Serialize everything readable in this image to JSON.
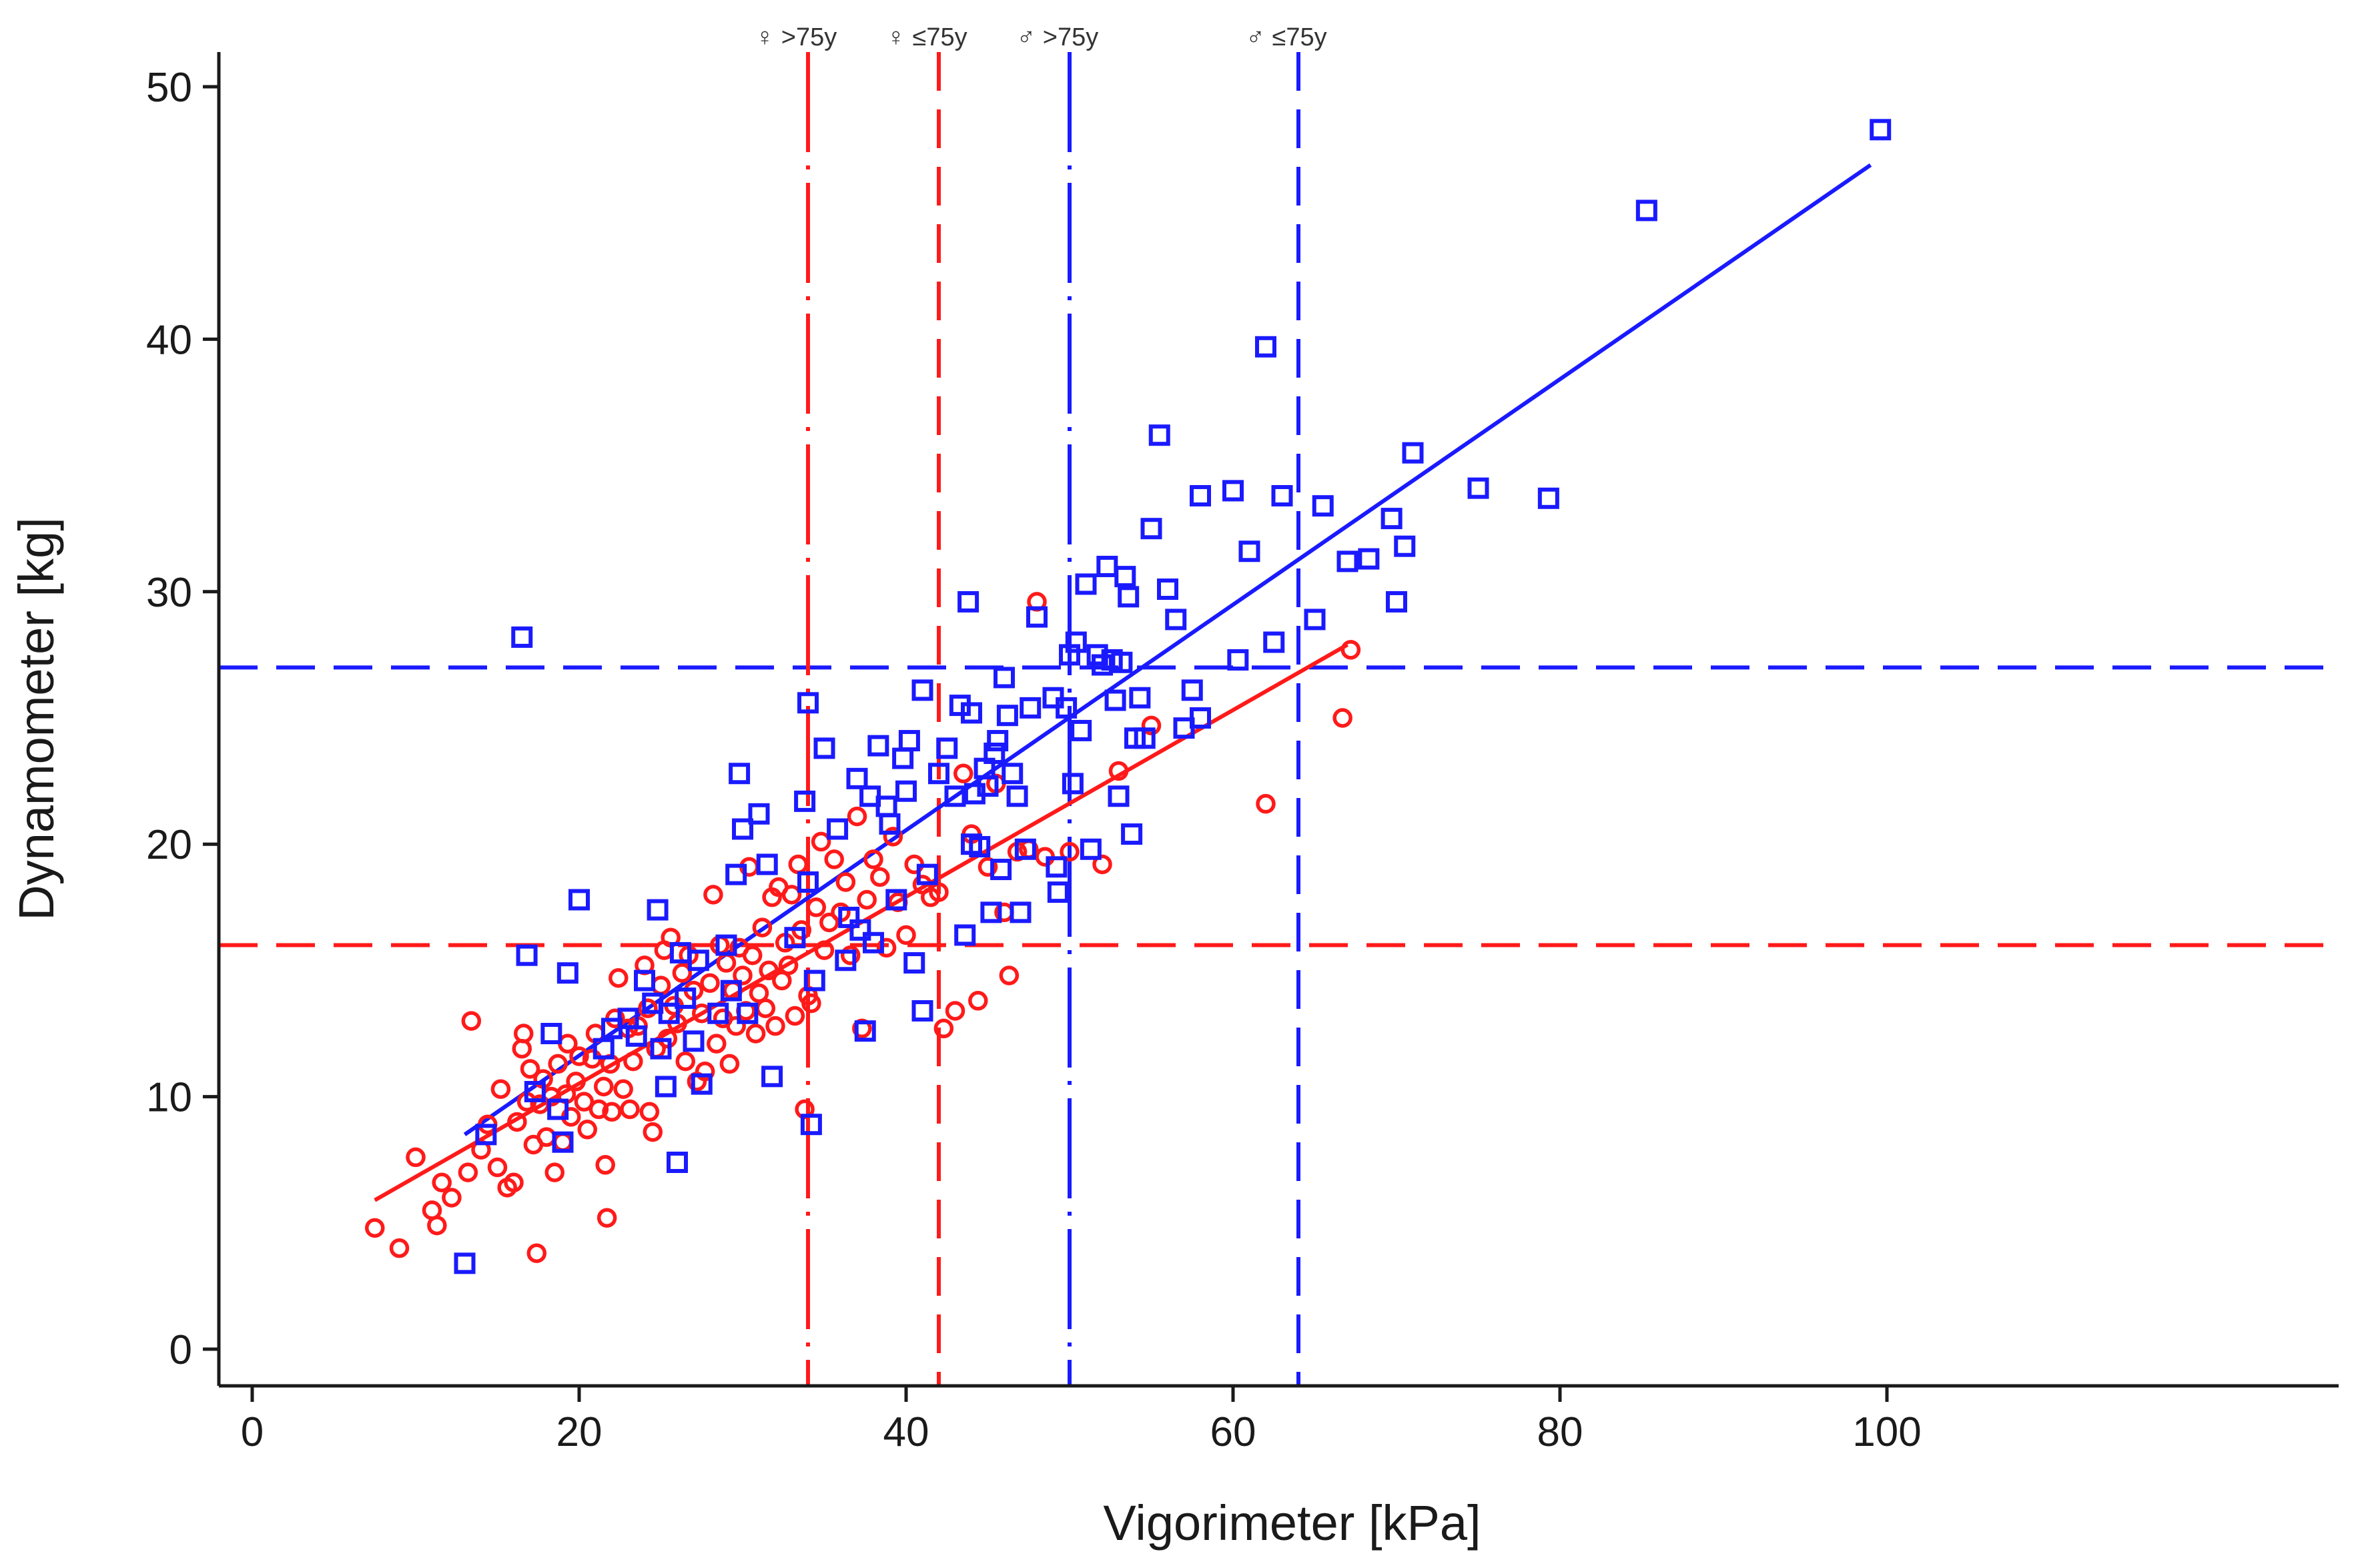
{
  "chart_data": {
    "type": "scatter",
    "xlabel": "Vigorimeter [kPa]",
    "ylabel": "Dynamometer [kg]",
    "xlim": [
      -2,
      102
    ],
    "ylim": [
      -1.5,
      51.5
    ],
    "xticks": [
      0,
      20,
      40,
      60,
      80,
      100
    ],
    "yticks": [
      0,
      10,
      20,
      30,
      40,
      50
    ],
    "grid": false,
    "legend": "none",
    "colors": {
      "female": "#ff1a1a",
      "male": "#1a1aff"
    },
    "series": [
      {
        "marker": "circle",
        "color": "#ff1a1a",
        "points": [
          [
            7.5,
            4.8
          ],
          [
            9,
            4
          ],
          [
            10,
            7.6
          ],
          [
            11,
            5.5
          ],
          [
            11.3,
            4.9
          ],
          [
            11.6,
            6.6
          ],
          [
            12.2,
            6
          ],
          [
            13.2,
            7
          ],
          [
            13.4,
            13
          ],
          [
            14,
            7.9
          ],
          [
            14.4,
            8.9
          ],
          [
            15,
            7.2
          ],
          [
            15.2,
            10.3
          ],
          [
            15.6,
            6.4
          ],
          [
            16,
            6.6
          ],
          [
            16.2,
            9
          ],
          [
            16.5,
            11.9
          ],
          [
            16.6,
            12.5
          ],
          [
            16.8,
            9.8
          ],
          [
            17,
            11.1
          ],
          [
            17.2,
            8.1
          ],
          [
            17.4,
            3.8
          ],
          [
            17.6,
            9.7
          ],
          [
            17.8,
            10.7
          ],
          [
            18,
            8.4
          ],
          [
            18.3,
            10
          ],
          [
            18.5,
            7
          ],
          [
            18.7,
            11.3
          ],
          [
            19,
            8.2
          ],
          [
            19.2,
            10.1
          ],
          [
            19.3,
            12.1
          ],
          [
            19.5,
            9.2
          ],
          [
            19.8,
            10.6
          ],
          [
            20,
            11.6
          ],
          [
            20.3,
            9.8
          ],
          [
            20.5,
            8.7
          ],
          [
            20.8,
            11.5
          ],
          [
            21,
            12.5
          ],
          [
            21.2,
            9.5
          ],
          [
            21.5,
            10.4
          ],
          [
            21.6,
            7.3
          ],
          [
            21.7,
            5.2
          ],
          [
            21.9,
            11.3
          ],
          [
            22,
            9.4
          ],
          [
            22.2,
            13.1
          ],
          [
            22.4,
            14.7
          ],
          [
            22.7,
            10.3
          ],
          [
            23,
            12.7
          ],
          [
            23.1,
            9.5
          ],
          [
            23.3,
            11.4
          ],
          [
            23.6,
            12.8
          ],
          [
            24,
            15.2
          ],
          [
            24.2,
            13.5
          ],
          [
            24.3,
            9.4
          ],
          [
            24.5,
            8.6
          ],
          [
            24.7,
            11.9
          ],
          [
            25,
            14.4
          ],
          [
            25.2,
            15.8
          ],
          [
            25.4,
            12.3
          ],
          [
            25.6,
            16.3
          ],
          [
            25.8,
            13.6
          ],
          [
            26,
            12.9
          ],
          [
            26.3,
            14.9
          ],
          [
            26.5,
            11.4
          ],
          [
            26.7,
            15.6
          ],
          [
            27,
            14.2
          ],
          [
            27.2,
            10.6
          ],
          [
            27.5,
            13.3
          ],
          [
            27.7,
            11
          ],
          [
            28,
            14.5
          ],
          [
            28.2,
            18
          ],
          [
            28.4,
            12.1
          ],
          [
            28.6,
            16
          ],
          [
            28.8,
            13.1
          ],
          [
            29,
            15.3
          ],
          [
            29.2,
            11.3
          ],
          [
            29.4,
            14.2
          ],
          [
            29.6,
            12.8
          ],
          [
            29.8,
            15.9
          ],
          [
            30,
            14.8
          ],
          [
            30.2,
            13.4
          ],
          [
            30.4,
            19.1
          ],
          [
            30.6,
            15.6
          ],
          [
            30.8,
            12.5
          ],
          [
            31,
            14.1
          ],
          [
            31.2,
            16.7
          ],
          [
            31.4,
            13.5
          ],
          [
            31.6,
            15
          ],
          [
            31.8,
            17.9
          ],
          [
            32,
            12.8
          ],
          [
            32.2,
            18.3
          ],
          [
            32.4,
            14.6
          ],
          [
            32.6,
            16.1
          ],
          [
            32.8,
            15.2
          ],
          [
            33,
            18
          ],
          [
            33.2,
            13.2
          ],
          [
            33.4,
            19.2
          ],
          [
            33.6,
            16.6
          ],
          [
            33.8,
            9.5
          ],
          [
            34,
            14
          ],
          [
            34.2,
            13.7
          ],
          [
            34.5,
            17.5
          ],
          [
            34.8,
            20.1
          ],
          [
            35,
            15.8
          ],
          [
            35.3,
            16.9
          ],
          [
            35.6,
            19.4
          ],
          [
            36,
            17.3
          ],
          [
            36.3,
            18.5
          ],
          [
            36.6,
            15.6
          ],
          [
            37,
            21.1
          ],
          [
            37.3,
            12.7
          ],
          [
            37.6,
            17.8
          ],
          [
            38,
            19.4
          ],
          [
            38.4,
            18.7
          ],
          [
            38.8,
            15.9
          ],
          [
            39.2,
            20.3
          ],
          [
            39.5,
            17.7
          ],
          [
            40,
            16.4
          ],
          [
            40.5,
            19.2
          ],
          [
            41,
            18.4
          ],
          [
            41.5,
            17.9
          ],
          [
            42,
            18.1
          ],
          [
            42.3,
            12.7
          ],
          [
            43,
            13.4
          ],
          [
            43.5,
            22.8
          ],
          [
            44,
            20.4
          ],
          [
            44.4,
            13.8
          ],
          [
            45,
            19.1
          ],
          [
            45.5,
            22.4
          ],
          [
            46,
            17.3
          ],
          [
            46.3,
            14.8
          ],
          [
            46.8,
            19.7
          ],
          [
            47.5,
            19.8
          ],
          [
            48,
            29.6
          ],
          [
            48.5,
            19.5
          ],
          [
            50,
            19.7
          ],
          [
            52,
            19.2
          ],
          [
            53,
            22.9
          ],
          [
            55,
            24.7
          ],
          [
            62,
            21.6
          ],
          [
            66.7,
            25
          ],
          [
            67.2,
            27.7
          ]
        ]
      },
      {
        "marker": "square",
        "color": "#1a1aff",
        "points": [
          [
            13,
            3.4
          ],
          [
            14.3,
            8.5
          ],
          [
            16.5,
            28.2
          ],
          [
            16.8,
            15.6
          ],
          [
            17.3,
            10.2
          ],
          [
            18.3,
            12.5
          ],
          [
            18.7,
            9.5
          ],
          [
            19,
            8.2
          ],
          [
            19.3,
            14.9
          ],
          [
            20,
            17.8
          ],
          [
            21.5,
            11.9
          ],
          [
            22,
            12.7
          ],
          [
            23,
            13.1
          ],
          [
            23.5,
            12.4
          ],
          [
            24,
            14.6
          ],
          [
            24.5,
            13.7
          ],
          [
            24.8,
            17.4
          ],
          [
            25,
            11.9
          ],
          [
            25.3,
            10.4
          ],
          [
            25.5,
            13.3
          ],
          [
            26,
            7.4
          ],
          [
            26.2,
            15.7
          ],
          [
            26.5,
            13.9
          ],
          [
            27,
            12.2
          ],
          [
            27.3,
            15.4
          ],
          [
            27.5,
            10.5
          ],
          [
            28.5,
            13.3
          ],
          [
            29,
            16
          ],
          [
            29.3,
            14.2
          ],
          [
            29.6,
            18.8
          ],
          [
            29.8,
            22.8
          ],
          [
            30,
            20.6
          ],
          [
            30.3,
            13.3
          ],
          [
            31,
            21.2
          ],
          [
            31.5,
            19.2
          ],
          [
            31.8,
            10.8
          ],
          [
            33.2,
            16.3
          ],
          [
            33.8,
            21.7
          ],
          [
            34,
            18.5
          ],
          [
            34,
            25.6
          ],
          [
            34.2,
            8.9
          ],
          [
            34.4,
            14.6
          ],
          [
            35,
            23.8
          ],
          [
            35.8,
            20.6
          ],
          [
            36.3,
            15.4
          ],
          [
            36.5,
            17.1
          ],
          [
            37,
            22.6
          ],
          [
            37.2,
            16.6
          ],
          [
            37.5,
            12.6
          ],
          [
            37.8,
            21.9
          ],
          [
            38,
            16.1
          ],
          [
            38.3,
            23.9
          ],
          [
            38.8,
            21.5
          ],
          [
            39,
            20.8
          ],
          [
            39.4,
            17.8
          ],
          [
            39.8,
            23.4
          ],
          [
            40,
            22.1
          ],
          [
            40.2,
            24.1
          ],
          [
            40.5,
            15.3
          ],
          [
            41,
            26.1
          ],
          [
            41,
            13.4
          ],
          [
            41.3,
            18.8
          ],
          [
            42,
            22.8
          ],
          [
            42.5,
            23.8
          ],
          [
            43,
            21.9
          ],
          [
            43.3,
            25.5
          ],
          [
            43.6,
            16.4
          ],
          [
            43.8,
            29.6
          ],
          [
            44,
            25.2
          ],
          [
            44,
            20
          ],
          [
            44.2,
            22
          ],
          [
            44.5,
            19.9
          ],
          [
            44.8,
            23
          ],
          [
            45,
            22.3
          ],
          [
            45.2,
            17.3
          ],
          [
            45.4,
            23.6
          ],
          [
            45.6,
            24.1
          ],
          [
            45.8,
            19
          ],
          [
            46,
            26.6
          ],
          [
            46.2,
            25.1
          ],
          [
            46.5,
            22.8
          ],
          [
            46.8,
            21.9
          ],
          [
            47,
            17.3
          ],
          [
            47.3,
            19.8
          ],
          [
            47.6,
            25.4
          ],
          [
            48,
            29
          ],
          [
            49,
            25.8
          ],
          [
            49.2,
            19.1
          ],
          [
            49.3,
            18.1
          ],
          [
            49.8,
            25.4
          ],
          [
            50,
            27.5
          ],
          [
            50.2,
            22.4
          ],
          [
            50.4,
            28
          ],
          [
            50.7,
            24.5
          ],
          [
            51,
            30.3
          ],
          [
            51.3,
            19.8
          ],
          [
            51.7,
            27.5
          ],
          [
            52,
            27.1
          ],
          [
            52.3,
            31
          ],
          [
            52.6,
            27.3
          ],
          [
            52.8,
            25.7
          ],
          [
            53,
            21.9
          ],
          [
            53.2,
            27.2
          ],
          [
            53.4,
            30.6
          ],
          [
            53.6,
            29.8
          ],
          [
            53.8,
            20.4
          ],
          [
            54,
            24.2
          ],
          [
            54.3,
            25.8
          ],
          [
            54.6,
            24.2
          ],
          [
            55,
            32.5
          ],
          [
            55.5,
            36.2
          ],
          [
            56,
            30.1
          ],
          [
            56.5,
            28.9
          ],
          [
            57,
            24.6
          ],
          [
            57.5,
            26.1
          ],
          [
            58,
            25
          ],
          [
            58,
            33.8
          ],
          [
            60,
            34
          ],
          [
            60.3,
            27.3
          ],
          [
            61,
            31.6
          ],
          [
            62,
            39.7
          ],
          [
            62.5,
            28
          ],
          [
            63,
            33.8
          ],
          [
            65,
            28.9
          ],
          [
            65.5,
            33.4
          ],
          [
            67,
            31.2
          ],
          [
            68.3,
            31.3
          ],
          [
            69.7,
            32.9
          ],
          [
            70,
            29.6
          ],
          [
            70.5,
            31.8
          ],
          [
            71,
            35.5
          ],
          [
            75,
            34.1
          ],
          [
            79.3,
            33.7
          ],
          [
            85.3,
            45.1
          ],
          [
            99.6,
            48.3
          ]
        ]
      }
    ],
    "fit_lines": [
      {
        "color": "#ff1a1a",
        "x": [
          7.5,
          67
        ],
        "y": [
          5.9,
          27.9
        ]
      },
      {
        "color": "#1a1aff",
        "x": [
          13,
          99
        ],
        "y": [
          8.5,
          46.9
        ]
      }
    ],
    "reference_lines": [
      {
        "orientation": "horizontal",
        "value": 27,
        "color": "#1a1aff",
        "style": "dash",
        "label": ""
      },
      {
        "orientation": "horizontal",
        "value": 16,
        "color": "#ff1a1a",
        "style": "dash",
        "label": ""
      },
      {
        "orientation": "vertical",
        "value": 34,
        "color": "#ff1a1a",
        "style": "dashdot",
        "label": "♀ >75y"
      },
      {
        "orientation": "vertical",
        "value": 42,
        "color": "#ff1a1a",
        "style": "dash",
        "label": "♀ ≤75y"
      },
      {
        "orientation": "vertical",
        "value": 50,
        "color": "#1a1aff",
        "style": "dashdot",
        "label": "♂ >75y"
      },
      {
        "orientation": "vertical",
        "value": 64,
        "color": "#1a1aff",
        "style": "dash",
        "label": "♂ ≤75y"
      }
    ]
  }
}
